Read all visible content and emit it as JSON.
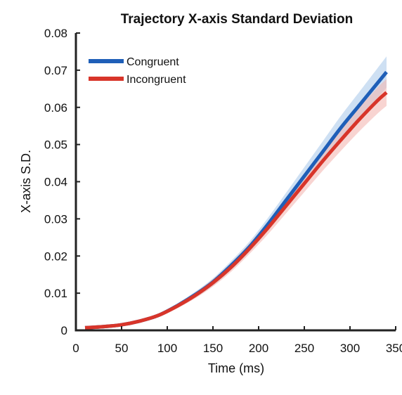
{
  "chart_data": {
    "type": "line",
    "title": "Trajectory X-axis Standard Deviation",
    "xlabel": "Time (ms)",
    "ylabel": "X-axis S.D.",
    "xlim": [
      0,
      350
    ],
    "ylim": [
      0,
      0.08
    ],
    "xticks": [
      0,
      50,
      100,
      150,
      200,
      250,
      300,
      350
    ],
    "yticks": [
      0,
      0.01,
      0.02,
      0.03,
      0.04,
      0.05,
      0.06,
      0.07,
      0.08
    ],
    "xtick_labels": [
      "0",
      "50",
      "100",
      "150",
      "200",
      "250",
      "300",
      "350"
    ],
    "ytick_labels": [
      "0",
      "0.01",
      "0.02",
      "0.03",
      "0.04",
      "0.05",
      "0.06",
      "0.07",
      "0.08"
    ],
    "grid": false,
    "legend_position": "top-left",
    "x": [
      10,
      30,
      50,
      70,
      90,
      110,
      130,
      150,
      170,
      190,
      210,
      230,
      250,
      270,
      290,
      310,
      330,
      340
    ],
    "series": [
      {
        "name": "Congruent",
        "color": "#1f5fb8",
        "band_color": "#aecbeb",
        "values": [
          0.0007,
          0.001,
          0.0015,
          0.0025,
          0.004,
          0.0065,
          0.0095,
          0.013,
          0.0175,
          0.0225,
          0.0285,
          0.035,
          0.0415,
          0.048,
          0.0545,
          0.0605,
          0.0665,
          0.0695
        ],
        "band": [
          0.0002,
          0.0002,
          0.0003,
          0.0004,
          0.0005,
          0.0006,
          0.0008,
          0.001,
          0.0012,
          0.0014,
          0.0017,
          0.002,
          0.0024,
          0.0028,
          0.0032,
          0.0036,
          0.004,
          0.0042
        ]
      },
      {
        "name": "Incongruent",
        "color": "#d8352a",
        "band_color": "#f3b8b2",
        "values": [
          0.0007,
          0.001,
          0.0015,
          0.0025,
          0.004,
          0.0064,
          0.0093,
          0.0128,
          0.017,
          0.022,
          0.0275,
          0.0335,
          0.0395,
          0.0455,
          0.0512,
          0.0567,
          0.0618,
          0.064
        ],
        "band": [
          0.0002,
          0.0002,
          0.0003,
          0.0004,
          0.0005,
          0.0006,
          0.0008,
          0.001,
          0.0012,
          0.0014,
          0.0017,
          0.002,
          0.0023,
          0.0026,
          0.0029,
          0.0032,
          0.0035,
          0.0036
        ]
      }
    ]
  }
}
